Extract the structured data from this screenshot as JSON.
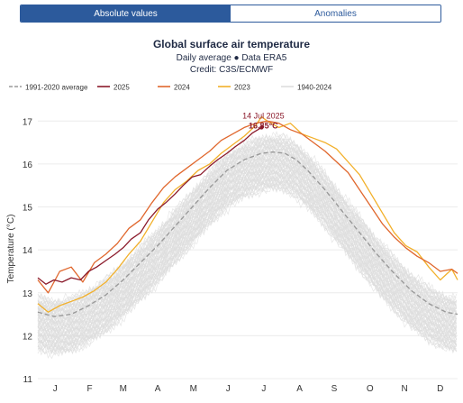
{
  "tabs": [
    {
      "label": "Absolute values",
      "active": true
    },
    {
      "label": "Anomalies",
      "active": false
    }
  ],
  "chart_data": {
    "type": "line",
    "title": "Global surface air temperature",
    "subtitle_lines": [
      "Daily average ● Data ERA5",
      "Credit: C3S/ECMWF"
    ],
    "ylabel": "Temperature (°C)",
    "xlabel": "",
    "ylim": [
      11,
      17.3
    ],
    "yticks": [
      11,
      12,
      13,
      14,
      15,
      16,
      17
    ],
    "xlim": [
      1,
      365
    ],
    "x_unit": "day of year",
    "month_ticks": [
      {
        "label": "J",
        "day": 16
      },
      {
        "label": "F",
        "day": 46
      },
      {
        "label": "M",
        "day": 75
      },
      {
        "label": "A",
        "day": 105
      },
      {
        "label": "M",
        "day": 136
      },
      {
        "label": "J",
        "day": 166
      },
      {
        "label": "J",
        "day": 197
      },
      {
        "label": "A",
        "day": 228
      },
      {
        "label": "S",
        "day": 258
      },
      {
        "label": "O",
        "day": 289
      },
      {
        "label": "N",
        "day": 319
      },
      {
        "label": "D",
        "day": 350
      }
    ],
    "grid": "horizontal",
    "legend_position": "top",
    "legend": [
      {
        "name": "1991-2020 average",
        "color": "#9a9a9a",
        "style": "dashed"
      },
      {
        "name": "2025",
        "color": "#8b1a2b",
        "style": "solid"
      },
      {
        "name": "2024",
        "color": "#e0672d",
        "style": "solid"
      },
      {
        "name": "2023",
        "color": "#f2b02a",
        "style": "solid"
      },
      {
        "name": "1940-2024",
        "color": "#dddddd",
        "style": "solid"
      }
    ],
    "series": [
      {
        "name": "1991-2020 average",
        "color": "#9a9a9a",
        "dashed": true,
        "x": [
          1,
          15,
          30,
          45,
          60,
          75,
          90,
          105,
          120,
          135,
          150,
          165,
          180,
          195,
          205,
          215,
          225,
          235,
          250,
          265,
          280,
          295,
          310,
          325,
          340,
          355,
          365
        ],
        "y": [
          12.55,
          12.45,
          12.5,
          12.7,
          12.95,
          13.3,
          13.7,
          14.1,
          14.55,
          15.0,
          15.45,
          15.85,
          16.1,
          16.25,
          16.28,
          16.25,
          16.1,
          15.85,
          15.4,
          14.9,
          14.4,
          13.9,
          13.45,
          13.05,
          12.75,
          12.55,
          12.5
        ]
      },
      {
        "name": "2025",
        "color": "#8b1a2b",
        "x": [
          1,
          8,
          15,
          22,
          30,
          38,
          45,
          52,
          60,
          68,
          75,
          82,
          90,
          97,
          105,
          112,
          120,
          127,
          135,
          142,
          150,
          157,
          165,
          172,
          180,
          187,
          195
        ],
        "y": [
          13.35,
          13.2,
          13.3,
          13.25,
          13.35,
          13.3,
          13.5,
          13.6,
          13.75,
          13.9,
          14.05,
          14.25,
          14.4,
          14.7,
          14.95,
          15.1,
          15.3,
          15.5,
          15.7,
          15.75,
          15.95,
          16.1,
          16.25,
          16.4,
          16.55,
          16.72,
          16.85
        ]
      },
      {
        "name": "2024",
        "color": "#e0672d",
        "x": [
          1,
          10,
          20,
          30,
          40,
          50,
          60,
          70,
          80,
          90,
          100,
          110,
          120,
          130,
          140,
          150,
          160,
          170,
          180,
          190,
          200,
          210,
          220,
          230,
          240,
          250,
          260,
          270,
          280,
          290,
          300,
          310,
          320,
          330,
          340,
          350,
          360,
          365
        ],
        "y": [
          13.3,
          13.0,
          13.5,
          13.6,
          13.25,
          13.7,
          13.9,
          14.15,
          14.5,
          14.7,
          15.1,
          15.45,
          15.7,
          15.9,
          16.1,
          16.3,
          16.55,
          16.7,
          16.85,
          16.95,
          17.0,
          16.95,
          16.8,
          16.7,
          16.5,
          16.3,
          16.05,
          15.8,
          15.4,
          15.0,
          14.6,
          14.3,
          14.05,
          13.85,
          13.7,
          13.5,
          13.55,
          13.45
        ]
      },
      {
        "name": "2023",
        "color": "#f2b02a",
        "x": [
          1,
          10,
          20,
          30,
          40,
          50,
          60,
          70,
          80,
          90,
          100,
          110,
          120,
          130,
          140,
          150,
          160,
          170,
          180,
          190,
          195,
          200,
          210,
          220,
          230,
          240,
          250,
          260,
          270,
          280,
          290,
          300,
          310,
          320,
          330,
          340,
          350,
          360,
          365
        ],
        "y": [
          12.75,
          12.55,
          12.7,
          12.8,
          12.9,
          13.05,
          13.25,
          13.55,
          13.9,
          14.2,
          14.65,
          15.1,
          15.4,
          15.6,
          15.85,
          16.0,
          16.25,
          16.45,
          16.65,
          16.9,
          17.1,
          17.0,
          16.85,
          16.95,
          16.7,
          16.6,
          16.5,
          16.35,
          16.05,
          15.75,
          15.3,
          14.85,
          14.4,
          14.1,
          13.95,
          13.6,
          13.3,
          13.55,
          13.3
        ]
      }
    ],
    "historical_band": {
      "name": "1940-2024",
      "color": "#dddddd",
      "count": 85,
      "low_offset": -0.85,
      "high_offset": 0.35
    },
    "annotation": {
      "date_label": "14 Jul 2025",
      "value_label": "16.85°C",
      "day": 195,
      "value": 16.85,
      "color": "#8b1a2b"
    }
  }
}
